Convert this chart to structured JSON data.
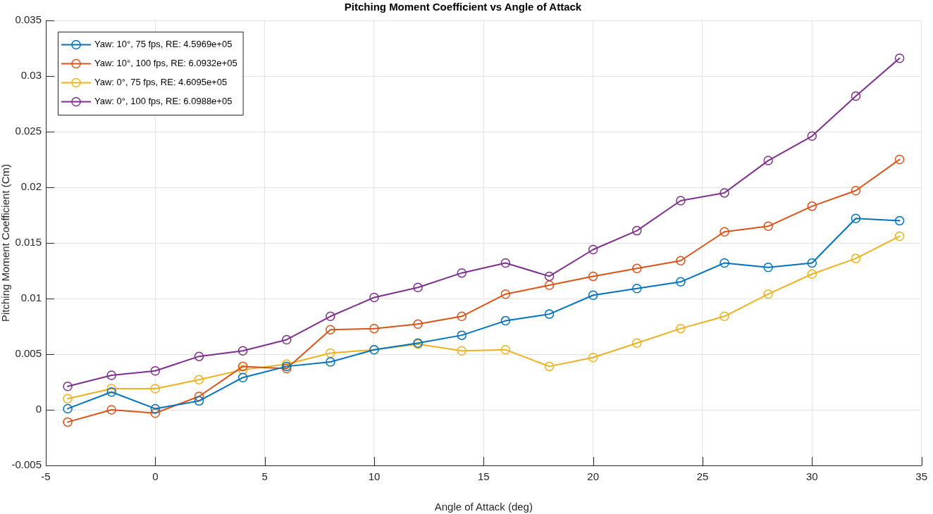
{
  "chart_data": {
    "type": "line",
    "title": "Pitching Moment Coefficient vs Angle of Attack",
    "xlabel": "Angle of Attack (deg)",
    "ylabel": "Pitching Moment Coefficient (Cm)",
    "x": [
      -4,
      -2,
      0,
      2,
      4,
      6,
      8,
      10,
      12,
      14,
      16,
      18,
      20,
      22,
      24,
      26,
      28,
      30,
      32,
      34
    ],
    "series": [
      {
        "name": "Yaw: 10°, 75 fps, RE: 4.5969e+05",
        "color": "#0072bd",
        "values": [
          0.0001,
          0.0016,
          0.0001,
          0.0008,
          0.0029,
          0.0039,
          0.0043,
          0.0054,
          0.006,
          0.0067,
          0.008,
          0.0086,
          0.0103,
          0.0109,
          0.0115,
          0.0132,
          0.0128,
          0.0132,
          0.0172,
          0.017
        ]
      },
      {
        "name": "Yaw: 10°, 100 fps, RE: 6.0932e+05",
        "color": "#d95319",
        "values": [
          -0.0011,
          0.0,
          -0.0003,
          0.0012,
          0.0039,
          0.0037,
          0.0072,
          0.0073,
          0.0077,
          0.0084,
          0.0104,
          0.0112,
          0.012,
          0.0127,
          0.0134,
          0.016,
          0.0165,
          0.0183,
          0.0197,
          0.0225
        ]
      },
      {
        "name": "Yaw: 0°, 75 fps, RE: 4.6095e+05",
        "color": "#edb120",
        "values": [
          0.001,
          0.0019,
          0.0019,
          0.0027,
          0.0036,
          0.0041,
          0.0051,
          0.0054,
          0.0059,
          0.0053,
          0.0054,
          0.0039,
          0.0047,
          0.006,
          0.0073,
          0.0084,
          0.0104,
          0.0122,
          0.0136,
          0.0156
        ]
      },
      {
        "name": "Yaw: 0°, 100 fps, RE: 6.0988e+05",
        "color": "#7e2f8e",
        "values": [
          0.0021,
          0.0031,
          0.0035,
          0.0048,
          0.0053,
          0.0063,
          0.0084,
          0.0101,
          0.011,
          0.0123,
          0.0132,
          0.012,
          0.0144,
          0.0161,
          0.0188,
          0.0195,
          0.0224,
          0.0246,
          0.0282,
          0.0316
        ]
      }
    ],
    "xlim": [
      -5,
      35
    ],
    "xticks": [
      -5,
      0,
      5,
      10,
      15,
      20,
      25,
      30,
      35
    ],
    "ylim": [
      -0.005,
      0.035
    ],
    "yticks": [
      -0.005,
      0,
      0.005,
      0.01,
      0.015,
      0.02,
      0.025,
      0.03,
      0.035
    ],
    "grid": true,
    "legend": "top left",
    "marker": "circle",
    "line_style": "solid"
  }
}
